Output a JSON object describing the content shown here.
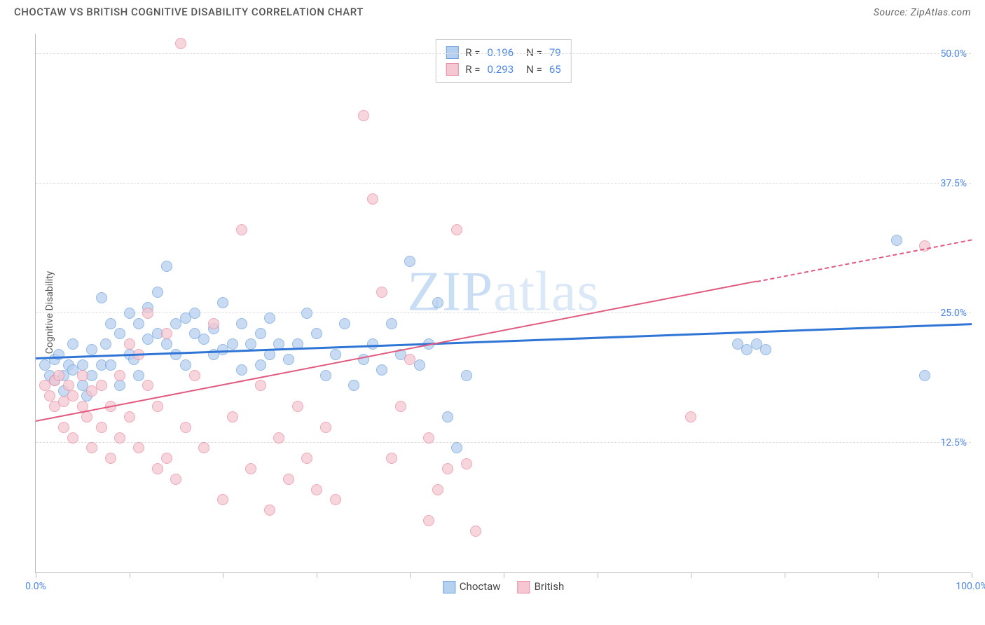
{
  "header": {
    "title": "CHOCTAW VS BRITISH COGNITIVE DISABILITY CORRELATION CHART",
    "source_prefix": "Source: ",
    "source": "ZipAtlas.com"
  },
  "ylabel": "Cognitive Disability",
  "watermark_a": "ZIP",
  "watermark_b": "atlas",
  "chart": {
    "type": "scatter",
    "xlim": [
      0,
      100
    ],
    "ylim": [
      0,
      52
    ],
    "background_color": "#ffffff",
    "grid_color": "#dddddd",
    "axis_color": "#bbbbbb",
    "ygrid": [
      {
        "v": 12.5,
        "label": "12.5%"
      },
      {
        "v": 25.0,
        "label": "25.0%"
      },
      {
        "v": 37.5,
        "label": "37.5%"
      },
      {
        "v": 50.0,
        "label": "50.0%"
      }
    ],
    "xticks": [
      0,
      10,
      20,
      30,
      40,
      50,
      60,
      70,
      80,
      90,
      100
    ],
    "xlabels": [
      {
        "v": 0,
        "label": "0.0%"
      },
      {
        "v": 100,
        "label": "100.0%"
      }
    ],
    "point_radius": 8,
    "series": [
      {
        "name": "Choctaw",
        "fill": "#b6d0ef",
        "stroke": "#6fa3de",
        "r": 0.196,
        "n": 79,
        "trend": {
          "x1": 0,
          "y1": 20.5,
          "x2": 100,
          "y2": 23.8,
          "color": "#2e75d6",
          "width": 3,
          "dash_after_x": null
        },
        "points": [
          [
            1,
            20
          ],
          [
            1.5,
            19
          ],
          [
            2,
            18.5
          ],
          [
            2,
            20.5
          ],
          [
            2.5,
            21
          ],
          [
            3,
            19
          ],
          [
            3,
            17.5
          ],
          [
            3.5,
            20
          ],
          [
            4,
            19.5
          ],
          [
            4,
            22
          ],
          [
            5,
            20
          ],
          [
            5,
            18
          ],
          [
            5.5,
            17
          ],
          [
            6,
            21.5
          ],
          [
            6,
            19
          ],
          [
            7,
            26.5
          ],
          [
            7,
            20
          ],
          [
            7.5,
            22
          ],
          [
            8,
            24
          ],
          [
            8,
            20
          ],
          [
            9,
            23
          ],
          [
            9,
            18
          ],
          [
            10,
            25
          ],
          [
            10,
            21
          ],
          [
            10.5,
            20.5
          ],
          [
            11,
            24
          ],
          [
            11,
            19
          ],
          [
            12,
            22.5
          ],
          [
            12,
            25.5
          ],
          [
            13,
            27
          ],
          [
            13,
            23
          ],
          [
            14,
            22
          ],
          [
            14,
            29.5
          ],
          [
            15,
            24
          ],
          [
            15,
            21
          ],
          [
            16,
            24.5
          ],
          [
            16,
            20
          ],
          [
            17,
            23
          ],
          [
            17,
            25
          ],
          [
            18,
            22.5
          ],
          [
            19,
            23.5
          ],
          [
            19,
            21
          ],
          [
            20,
            21.5
          ],
          [
            20,
            26
          ],
          [
            21,
            22
          ],
          [
            22,
            24
          ],
          [
            22,
            19.5
          ],
          [
            23,
            22
          ],
          [
            24,
            20
          ],
          [
            24,
            23
          ],
          [
            25,
            21
          ],
          [
            25,
            24.5
          ],
          [
            26,
            22
          ],
          [
            27,
            20.5
          ],
          [
            28,
            22
          ],
          [
            29,
            25
          ],
          [
            30,
            23
          ],
          [
            31,
            19
          ],
          [
            32,
            21
          ],
          [
            33,
            24
          ],
          [
            34,
            18
          ],
          [
            35,
            20.5
          ],
          [
            36,
            22
          ],
          [
            37,
            19.5
          ],
          [
            38,
            24
          ],
          [
            39,
            21
          ],
          [
            40,
            30
          ],
          [
            41,
            20
          ],
          [
            42,
            22
          ],
          [
            43,
            26
          ],
          [
            44,
            15
          ],
          [
            45,
            12
          ],
          [
            46,
            19
          ],
          [
            75,
            22
          ],
          [
            76,
            21.5
          ],
          [
            77,
            22
          ],
          [
            78,
            21.5
          ],
          [
            92,
            32
          ],
          [
            95,
            19
          ]
        ]
      },
      {
        "name": "British",
        "fill": "#f5c7d2",
        "stroke": "#e98ba2",
        "r": 0.293,
        "n": 65,
        "trend": {
          "x1": 0,
          "y1": 14.5,
          "x2": 100,
          "y2": 32,
          "color": "#e15a80",
          "width": 2.5,
          "dash_after_x": 77
        },
        "points": [
          [
            1,
            18
          ],
          [
            1.5,
            17
          ],
          [
            2,
            16
          ],
          [
            2,
            18.5
          ],
          [
            2.5,
            19
          ],
          [
            3,
            16.5
          ],
          [
            3,
            14
          ],
          [
            3.5,
            18
          ],
          [
            4,
            17
          ],
          [
            4,
            13
          ],
          [
            5,
            16
          ],
          [
            5,
            19
          ],
          [
            5.5,
            15
          ],
          [
            6,
            12
          ],
          [
            6,
            17.5
          ],
          [
            7,
            14
          ],
          [
            7,
            18
          ],
          [
            8,
            11
          ],
          [
            8,
            16
          ],
          [
            9,
            19
          ],
          [
            9,
            13
          ],
          [
            10,
            22
          ],
          [
            10,
            15
          ],
          [
            11,
            21
          ],
          [
            11,
            12
          ],
          [
            12,
            25
          ],
          [
            12,
            18
          ],
          [
            13,
            10
          ],
          [
            13,
            16
          ],
          [
            14,
            23
          ],
          [
            14,
            11
          ],
          [
            15,
            9
          ],
          [
            15.5,
            51
          ],
          [
            16,
            14
          ],
          [
            17,
            19
          ],
          [
            18,
            12
          ],
          [
            19,
            24
          ],
          [
            20,
            7
          ],
          [
            21,
            15
          ],
          [
            22,
            33
          ],
          [
            23,
            10
          ],
          [
            24,
            18
          ],
          [
            25,
            6
          ],
          [
            26,
            13
          ],
          [
            27,
            9
          ],
          [
            28,
            16
          ],
          [
            29,
            11
          ],
          [
            30,
            8
          ],
          [
            31,
            14
          ],
          [
            32,
            7
          ],
          [
            35,
            44
          ],
          [
            36,
            36
          ],
          [
            37,
            27
          ],
          [
            38,
            11
          ],
          [
            39,
            16
          ],
          [
            40,
            20.5
          ],
          [
            42,
            5
          ],
          [
            42,
            13
          ],
          [
            43,
            8
          ],
          [
            44,
            10
          ],
          [
            45,
            33
          ],
          [
            46,
            10.5
          ],
          [
            47,
            4
          ],
          [
            70,
            15
          ],
          [
            95,
            31.5
          ]
        ]
      }
    ]
  },
  "legend_top": {
    "r_label": "R  =",
    "n_label": "N  ="
  },
  "legend_bottom": [
    {
      "label": "Choctaw",
      "fill": "#b6d0ef",
      "stroke": "#6fa3de"
    },
    {
      "label": "British",
      "fill": "#f5c7d2",
      "stroke": "#e98ba2"
    }
  ]
}
